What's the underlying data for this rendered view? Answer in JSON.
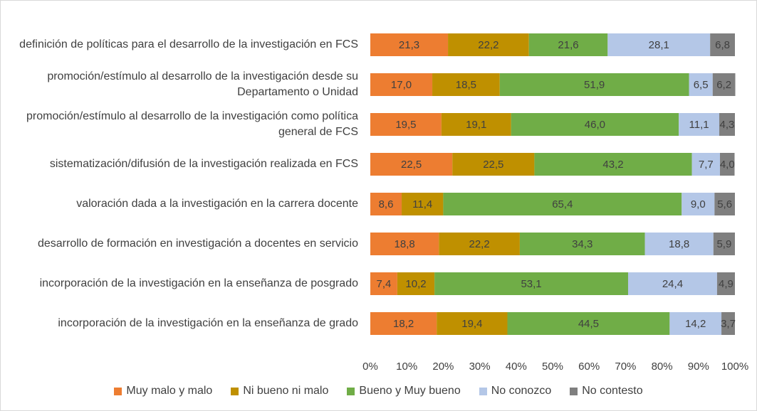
{
  "chart_data": {
    "type": "bar",
    "orientation": "horizontal",
    "stacked": true,
    "categories": [
      "definición de políticas para el desarrollo de la investigación en FCS",
      "promoción/estímulo al desarrollo de la investigación desde su Departamento o Unidad",
      "promoción/estímulo al desarrollo de la investigación como política general de FCS",
      "sistematización/difusión de la investigación realizada en FCS",
      "valoración dada a la investigación en la carrera docente",
      "desarrollo de formación en investigación a docentes en servicio",
      "incorporación de la investigación en la enseñanza de posgrado",
      "incorporación de la investigación en la enseñanza de grado"
    ],
    "series": [
      {
        "name": "Muy malo y malo",
        "color": "#ED7D31",
        "values": [
          21.3,
          17.0,
          19.5,
          22.5,
          8.6,
          18.8,
          7.4,
          18.2
        ],
        "value_labels": [
          "21,3",
          "17,0",
          "19,5",
          "22,5",
          "8,6",
          "18,8",
          "7,4",
          "18,2"
        ]
      },
      {
        "name": "Ni bueno ni malo",
        "color": "#BF9000",
        "values": [
          22.2,
          18.5,
          19.1,
          22.5,
          11.4,
          22.2,
          10.2,
          19.4
        ],
        "value_labels": [
          "22,2",
          "18,5",
          "19,1",
          "22,5",
          "11,4",
          "22,2",
          "10,2",
          "19,4"
        ]
      },
      {
        "name": "Bueno y Muy bueno",
        "color": "#70AD47",
        "values": [
          21.6,
          51.9,
          46.0,
          43.2,
          65.4,
          34.3,
          53.1,
          44.5
        ],
        "value_labels": [
          "21,6",
          "51,9",
          "46,0",
          "43,2",
          "65,4",
          "34,3",
          "53,1",
          "44,5"
        ]
      },
      {
        "name": "No conozco",
        "color": "#B4C7E7",
        "values": [
          28.1,
          6.5,
          11.1,
          7.7,
          9.0,
          18.8,
          24.4,
          14.2
        ],
        "value_labels": [
          "28,1",
          "6,5",
          "11,1",
          "7,7",
          "9,0",
          "18,8",
          "24,4",
          "14,2"
        ]
      },
      {
        "name": "No contesto",
        "color": "#7F7F7F",
        "values": [
          6.8,
          6.2,
          4.3,
          4.0,
          5.6,
          5.9,
          4.9,
          3.7
        ],
        "value_labels": [
          "6,8",
          "6,2",
          "4,3",
          "4,0",
          "5,6",
          "5,9",
          "4,9",
          "3,7"
        ]
      }
    ],
    "xlim": [
      0,
      100
    ],
    "xticks": [
      {
        "value": 0,
        "label": "0%"
      },
      {
        "value": 10,
        "label": "10%"
      },
      {
        "value": 20,
        "label": "20%"
      },
      {
        "value": 30,
        "label": "30%"
      },
      {
        "value": 40,
        "label": "40%"
      },
      {
        "value": 50,
        "label": "50%"
      },
      {
        "value": 60,
        "label": "60%"
      },
      {
        "value": 70,
        "label": "70%"
      },
      {
        "value": 80,
        "label": "80%"
      },
      {
        "value": 90,
        "label": "90%"
      },
      {
        "value": 100,
        "label": "100%"
      }
    ],
    "legend": "bottom"
  }
}
